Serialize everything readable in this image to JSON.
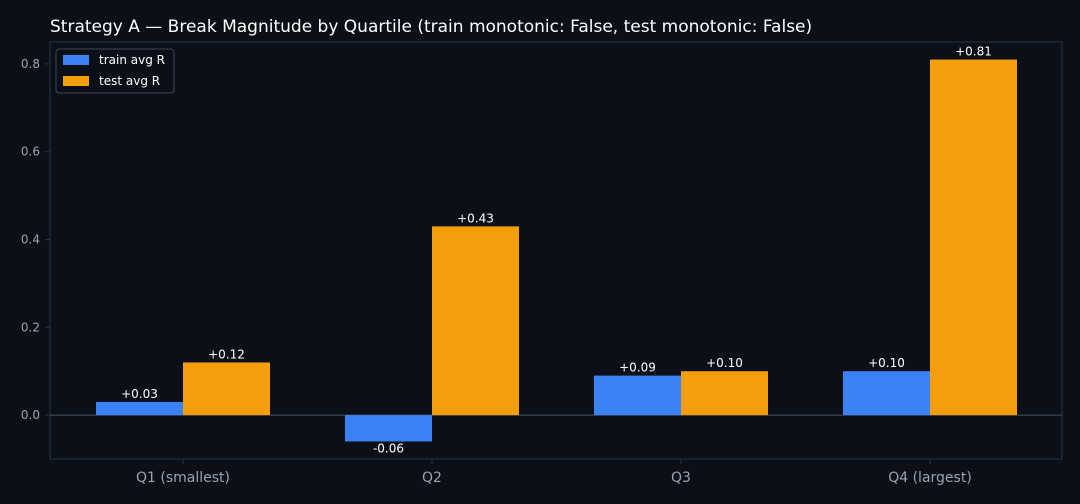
{
  "chart_data": {
    "type": "bar",
    "title": "Strategy A — Break Magnitude by Quartile (train monotonic: False, test monotonic: False)",
    "xlabel": "",
    "ylabel": "",
    "categories": [
      "Q1 (smallest)",
      "Q2",
      "Q3",
      "Q4 (largest)"
    ],
    "series": [
      {
        "name": "train avg R",
        "values": [
          0.03,
          -0.06,
          0.09,
          0.1
        ],
        "labels": [
          "+0.03",
          "-0.06",
          "+0.09",
          "+0.10"
        ],
        "color": "#3b82f6"
      },
      {
        "name": "test avg R",
        "values": [
          0.12,
          0.43,
          0.1,
          0.81
        ],
        "labels": [
          "+0.12",
          "+0.43",
          "+0.10",
          "+0.81"
        ],
        "color": "#f59e0b"
      }
    ],
    "ylim": [
      -0.1,
      0.85
    ],
    "yticks": [
      0.0,
      0.2,
      0.4,
      0.6,
      0.8
    ],
    "ytick_labels": [
      "0.0",
      "0.2",
      "0.4",
      "0.6",
      "0.8"
    ],
    "grid": false,
    "zero_line": true,
    "legend_position": "top-left",
    "colors": {
      "background": "#0b0f17",
      "axis": "#2a3140",
      "text": "#ffffff",
      "tick_text": "#9ca3af"
    }
  }
}
